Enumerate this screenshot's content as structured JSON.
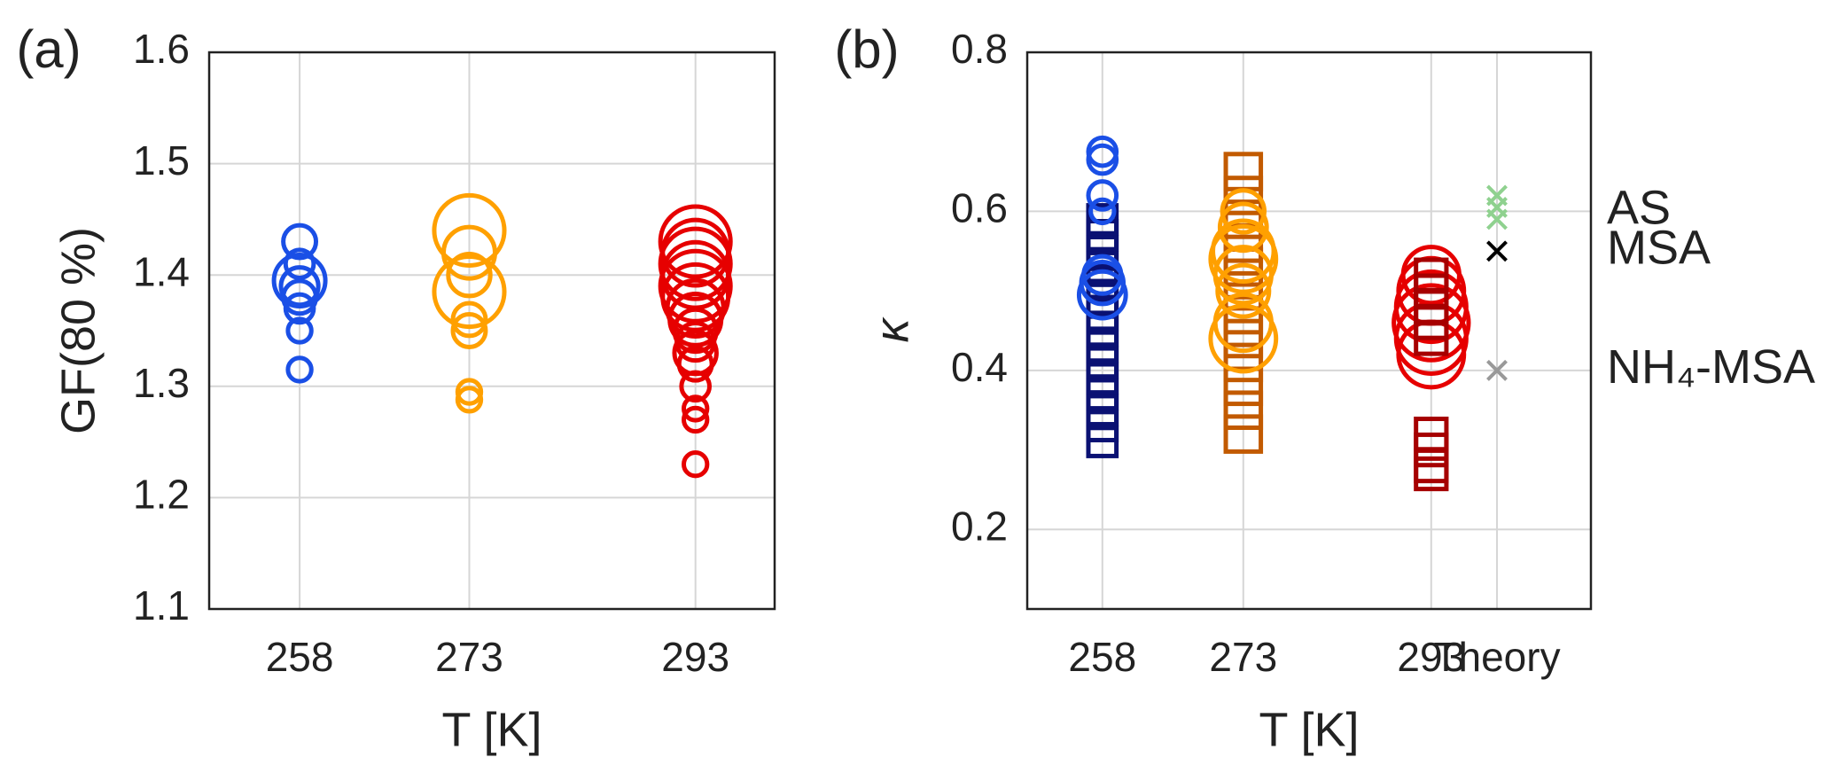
{
  "chart_data": [
    {
      "type": "scatter",
      "panel_label": "(a)",
      "xlabel": "T [K]",
      "ylabel": "GF(80 %)",
      "xlim": [
        250,
        300
      ],
      "xticks": [
        258,
        273,
        293
      ],
      "ylim": [
        1.1,
        1.6
      ],
      "yticks": [
        1.1,
        1.2,
        1.3,
        1.4,
        1.5,
        1.6
      ],
      "grid": true,
      "series": [
        {
          "marker": "circle",
          "color": "#1a4fe6",
          "x": 258,
          "values": [
            1.43,
            1.41,
            1.395,
            1.39,
            1.38,
            1.37,
            1.35,
            1.315
          ],
          "sizes": [
            14,
            12,
            22,
            16,
            14,
            12,
            10,
            10
          ]
        },
        {
          "marker": "circle",
          "color": "#ffa000",
          "x": 273,
          "values": [
            1.44,
            1.42,
            1.4,
            1.385,
            1.36,
            1.35,
            1.295,
            1.288
          ],
          "sizes": [
            30,
            22,
            18,
            30,
            14,
            14,
            10,
            10
          ]
        },
        {
          "marker": "circle",
          "color": "#e60000",
          "x": 293,
          "values": [
            1.43,
            1.42,
            1.41,
            1.4,
            1.39,
            1.38,
            1.37,
            1.36,
            1.35,
            1.34,
            1.33,
            1.32,
            1.3,
            1.28,
            1.27,
            1.23
          ],
          "sizes": [
            30,
            28,
            30,
            28,
            30,
            28,
            24,
            22,
            18,
            16,
            18,
            14,
            12,
            10,
            10,
            10
          ]
        }
      ]
    },
    {
      "type": "scatter",
      "panel_label": "(b)",
      "xlabel": "T [K]",
      "ylabel": "κ",
      "xlim": [
        250,
        310
      ],
      "xticks": [
        258,
        273,
        293,
        {
          "value": 300,
          "label": "Theory"
        }
      ],
      "ylim": [
        0.1,
        0.8
      ],
      "yticks": [
        0.2,
        0.4,
        0.6,
        0.8
      ],
      "grid": true,
      "series": [
        {
          "marker": "square",
          "color": "#0a1173",
          "x": 258,
          "size": 12,
          "values": [
            0.31,
            0.33,
            0.35,
            0.37,
            0.39,
            0.41,
            0.43,
            0.45,
            0.47,
            0.49,
            0.51,
            0.53,
            0.55,
            0.57,
            0.59
          ]
        },
        {
          "marker": "circle",
          "color": "#1a4fe6",
          "x": 258,
          "values": [
            0.675,
            0.665,
            0.62,
            0.6,
            0.52,
            0.51,
            0.495
          ],
          "sizes": [
            12,
            12,
            12,
            10,
            16,
            18,
            20
          ]
        },
        {
          "marker": "square",
          "color": "#c25a00",
          "x": 273,
          "size": 15,
          "values": [
            0.32,
            0.35,
            0.38,
            0.41,
            0.44,
            0.47,
            0.5,
            0.53,
            0.56,
            0.59,
            0.62,
            0.65
          ]
        },
        {
          "marker": "circle",
          "color": "#ffa000",
          "x": 273,
          "values": [
            0.6,
            0.58,
            0.55,
            0.54,
            0.52,
            0.5,
            0.46,
            0.44
          ],
          "sizes": [
            18,
            20,
            26,
            28,
            24,
            22,
            24,
            28
          ]
        },
        {
          "marker": "circle",
          "color": "#e60000",
          "x": 293,
          "values": [
            0.52,
            0.5,
            0.48,
            0.46,
            0.44,
            0.42
          ],
          "sizes": [
            24,
            28,
            30,
            32,
            30,
            28
          ]
        },
        {
          "marker": "square",
          "color": "#a60000",
          "x": 293,
          "size": 13,
          "values": [
            0.27,
            0.28,
            0.3,
            0.32,
            0.44,
            0.46,
            0.48,
            0.5,
            0.52
          ]
        },
        {
          "marker": "cross",
          "color": "#8fd18f",
          "x": 300,
          "size": 8,
          "values": [
            0.62,
            0.605,
            0.59
          ]
        },
        {
          "marker": "cross",
          "color": "#000000",
          "x": 300,
          "size": 8,
          "values": [
            0.55
          ]
        },
        {
          "marker": "cross",
          "color": "#999999",
          "x": 300,
          "size": 8,
          "values": [
            0.4
          ]
        }
      ],
      "annotations": [
        {
          "text": "AS",
          "y": 0.6
        },
        {
          "text": "MSA",
          "y": 0.55
        },
        {
          "text": "NH₄-MSA",
          "y": 0.4
        }
      ]
    }
  ]
}
